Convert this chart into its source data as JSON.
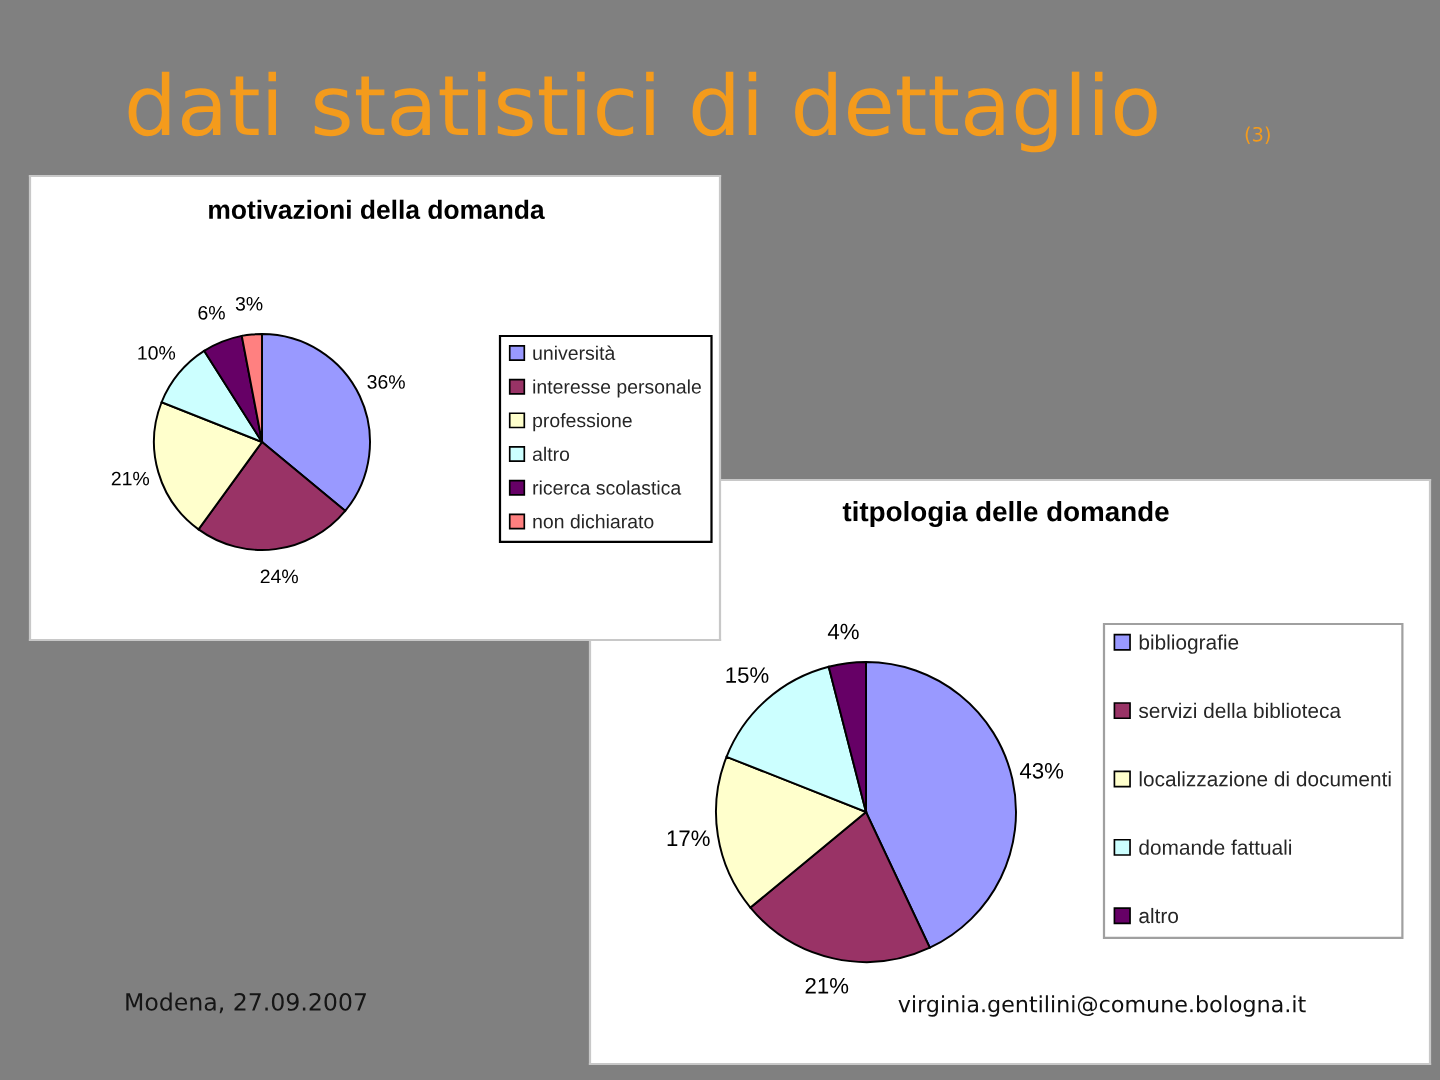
{
  "chart_data": [
    {
      "type": "pie",
      "title": "motivazioni della domanda",
      "categories": [
        "università",
        "interesse personale",
        "professione",
        "altro",
        "ricerca scolastica",
        "non dichiarato"
      ],
      "values": [
        36,
        24,
        21,
        10,
        6,
        3
      ],
      "value_labels": [
        "36%",
        "24%",
        "21%",
        "10%",
        "6%",
        "3%"
      ],
      "colors": [
        "#9999ff",
        "#993366",
        "#ffffcc",
        "#ccffff",
        "#660066",
        "#ff8080"
      ],
      "legend": "right",
      "annotations": [
        "dati statistici di dettaglio",
        "(3)"
      ]
    },
    {
      "type": "pie",
      "title": "titpologia delle domande",
      "categories": [
        "bibliografie",
        "servizi della biblioteca",
        "localizzazione di documenti",
        "domande fattuali",
        "altro"
      ],
      "values": [
        43,
        21,
        17,
        15,
        4
      ],
      "value_labels": [
        "43%",
        "21%",
        "17%",
        "15%",
        "4%"
      ],
      "colors": [
        "#9999ff",
        "#993366",
        "#ffffcc",
        "#ccffff",
        "#660066"
      ],
      "legend": "right",
      "annotations": [
        "Modena, 27.09.2007",
        "virginia.gentilini@comune.bologna.it"
      ]
    }
  ]
}
